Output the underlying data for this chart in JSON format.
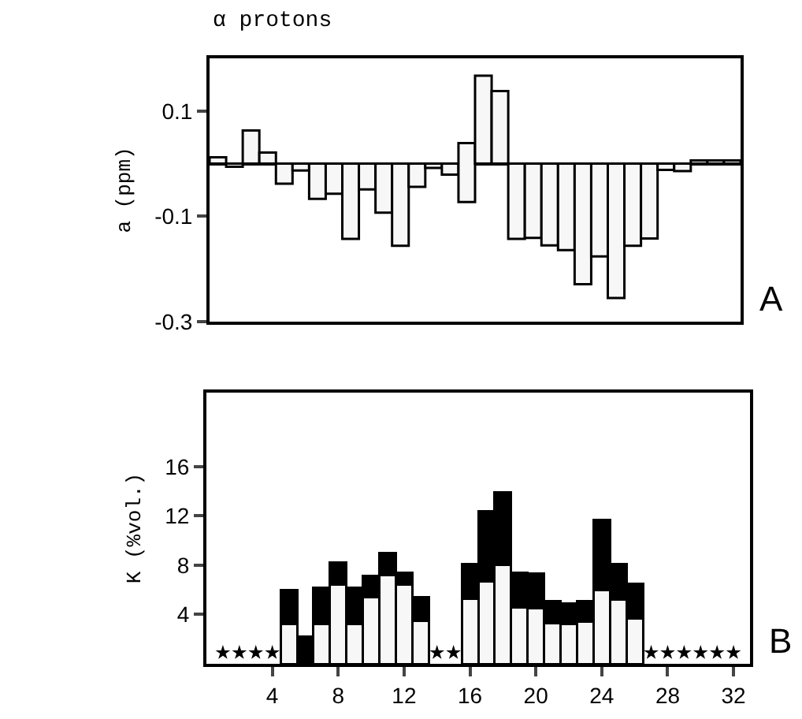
{
  "chart_data": [
    {
      "type": "bar",
      "title": "α protons",
      "ylabel": "a (ppm)",
      "categories": [
        null,
        null,
        null,
        null,
        null,
        null,
        null,
        null,
        null,
        null,
        null,
        null,
        null,
        null,
        null,
        null,
        null,
        null,
        null,
        null,
        null,
        null,
        null,
        null,
        null,
        null,
        null,
        null,
        null,
        null,
        null,
        null
      ],
      "values": [
        0.012,
        -0.006,
        0.063,
        0.021,
        -0.038,
        -0.013,
        -0.067,
        -0.057,
        -0.143,
        -0.049,
        -0.093,
        -0.156,
        -0.044,
        -0.008,
        -0.021,
        0.112,
        0.167,
        0.138,
        -0.143,
        -0.141,
        -0.155,
        -0.164,
        -0.229,
        -0.176,
        -0.255,
        -0.156,
        -0.142,
        -0.012,
        -0.014,
        0.006,
        0.006,
        0.006
      ],
      "base": [
        0,
        0,
        0,
        0,
        0,
        0,
        0,
        0,
        0,
        0,
        0,
        0,
        0,
        0,
        0,
        -0.073,
        0,
        0,
        0,
        0,
        0,
        0,
        0,
        0,
        0,
        0,
        0,
        0,
        0,
        0,
        0,
        0
      ],
      "color": "#f7f7f7",
      "ylim": [
        -0.3,
        0.2
      ],
      "yticks": [
        0.1,
        -0.1,
        -0.3
      ],
      "tick_labels": "y",
      "annotations": [
        "A"
      ]
    },
    {
      "type": "bar",
      "ylabel": "K (%vol.)",
      "stacked": true,
      "x": [
        5,
        6,
        7,
        8,
        9,
        10,
        11,
        12,
        13,
        16,
        17,
        18,
        19,
        20,
        21,
        22,
        23,
        24,
        25,
        26
      ],
      "series": [
        {
          "color": "#f7f7f7",
          "values": [
            3.2,
            null,
            3.2,
            6.4,
            3.2,
            5.4,
            7.2,
            6.4,
            3.5,
            5.3,
            6.7,
            8.0,
            4.6,
            4.5,
            3.3,
            3.2,
            3.4,
            6.0,
            5.2,
            3.7
          ]
        },
        {
          "color": "#000000",
          "values": [
            2.8,
            2.2,
            3.0,
            1.8,
            3.0,
            1.7,
            1.8,
            1.0,
            1.9,
            2.8,
            5.7,
            5.9,
            2.8,
            2.8,
            1.8,
            1.7,
            1.7,
            5.7,
            2.9,
            2.8
          ]
        },
        {
          "type": "scatter",
          "marker": "star",
          "color": "#000000",
          "x": [
            1,
            2,
            3,
            4,
            14,
            15,
            27,
            28,
            29,
            30,
            31,
            32
          ],
          "values": [
            0.9,
            0.9,
            0.9,
            0.9,
            0.9,
            0.9,
            0.9,
            0.9,
            0.9,
            0.9,
            0.9,
            0.9
          ]
        }
      ],
      "xlim": [
        0,
        33
      ],
      "ylim": [
        0,
        22
      ],
      "xticks": [
        4,
        8,
        12,
        16,
        20,
        24,
        28,
        32
      ],
      "yticks": [
        4,
        8,
        12,
        16
      ],
      "annotations": [
        "B"
      ]
    }
  ]
}
